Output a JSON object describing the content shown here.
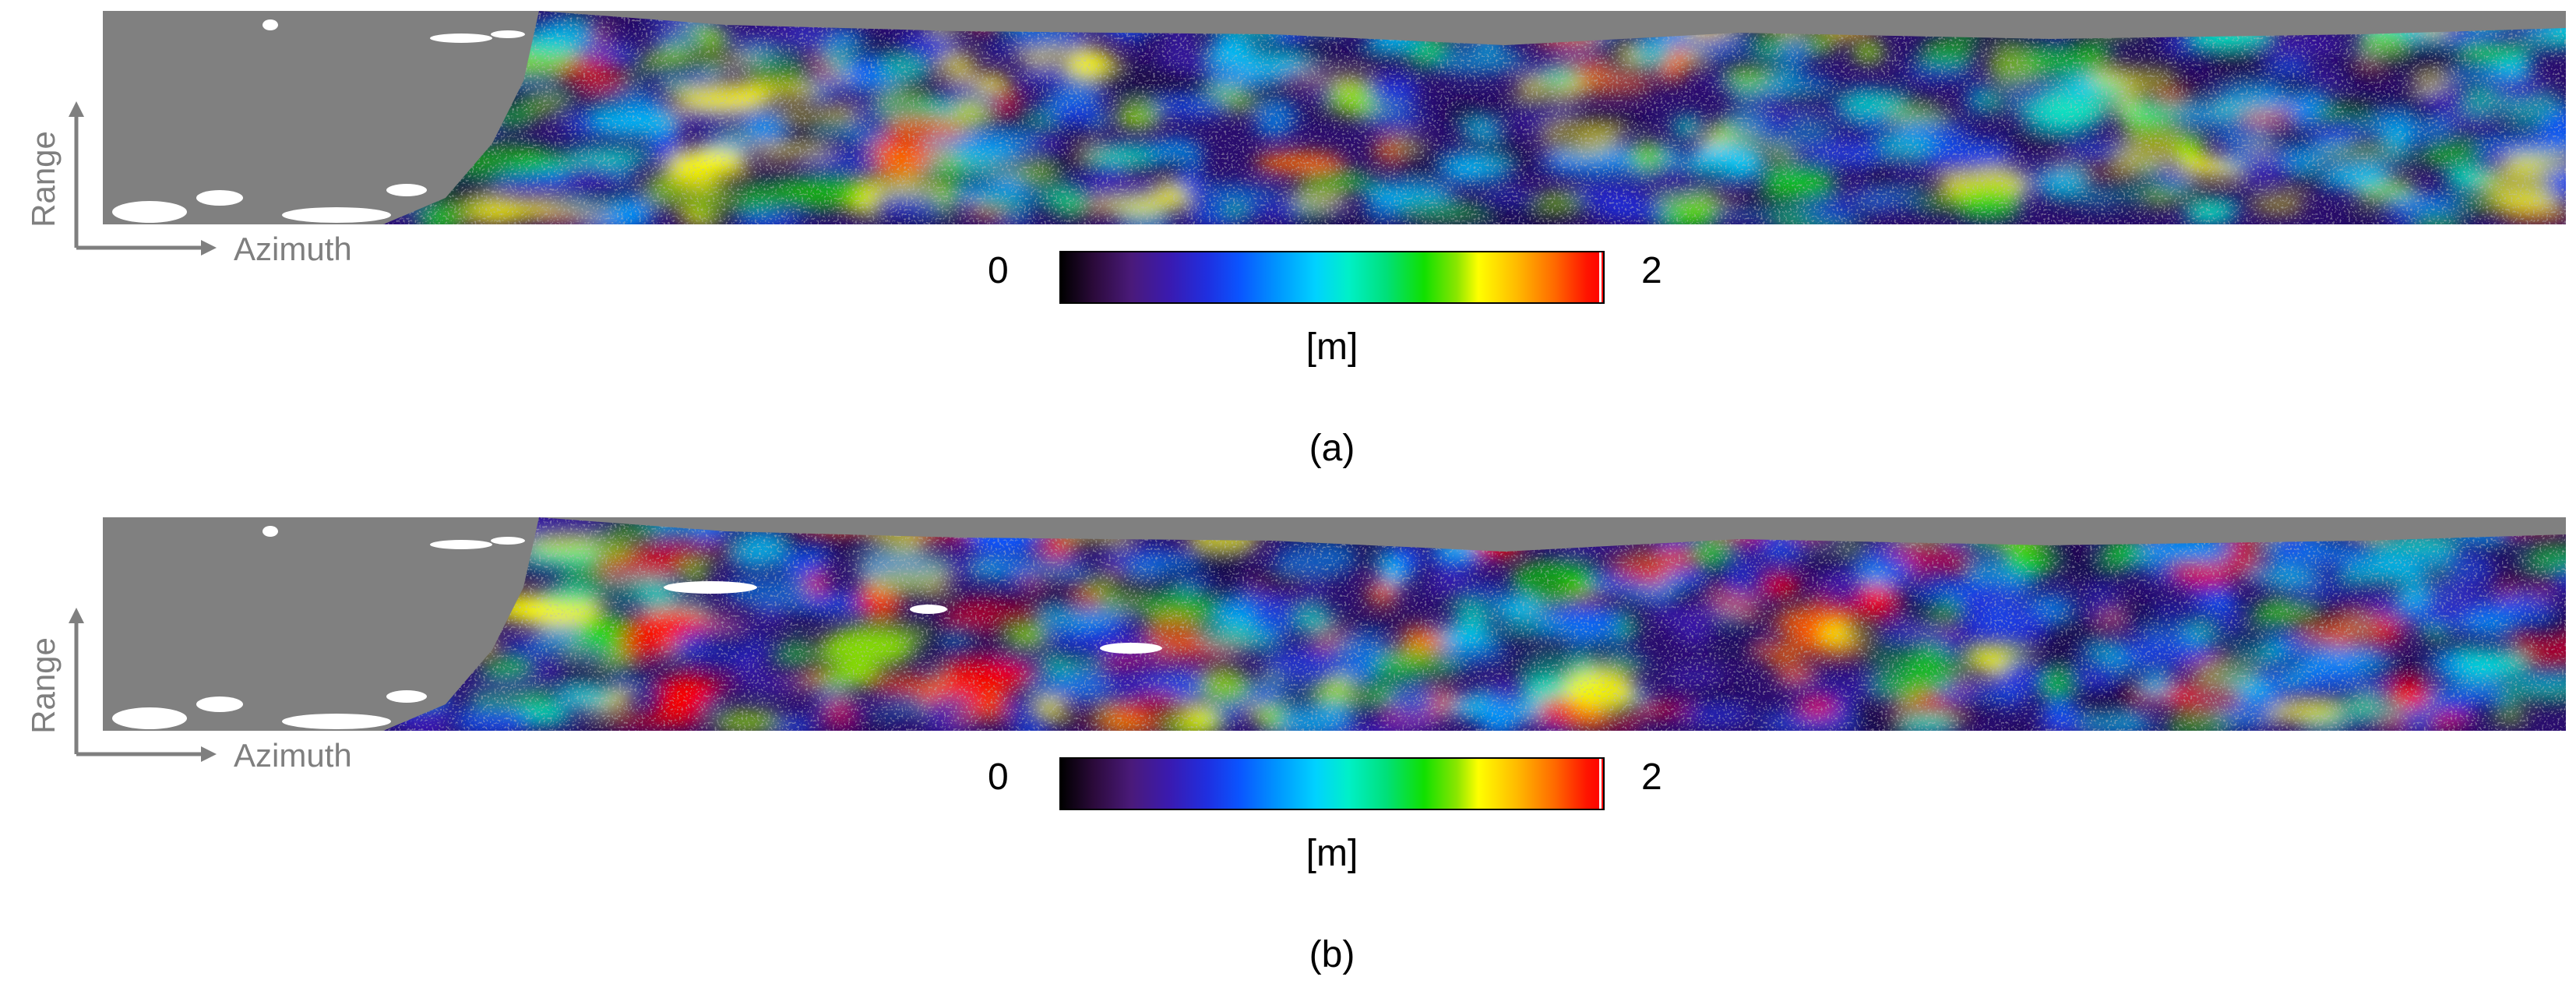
{
  "chart_data": [
    {
      "type": "heatmap",
      "panel": "(a)",
      "x_axis_label": "Azimuth",
      "y_axis_label": "Range",
      "colorbar": {
        "min": "0",
        "max": "2",
        "unit": "[m]",
        "colormap": "black-purple-blue-cyan-green-yellow-red",
        "vmin": 0,
        "vmax": 2
      },
      "masked_color": "#808080",
      "saturated_color": "#ffffff",
      "intensity": 0.9
    },
    {
      "type": "heatmap",
      "panel": "(b)",
      "x_axis_label": "Azimuth",
      "y_axis_label": "Range",
      "colorbar": {
        "min": "0",
        "max": "2",
        "unit": "[m]",
        "colormap": "black-purple-blue-cyan-green-yellow-red",
        "vmin": 0,
        "vmax": 2
      },
      "masked_color": "#808080",
      "saturated_color": "#ffffff",
      "intensity": 1.1
    }
  ]
}
